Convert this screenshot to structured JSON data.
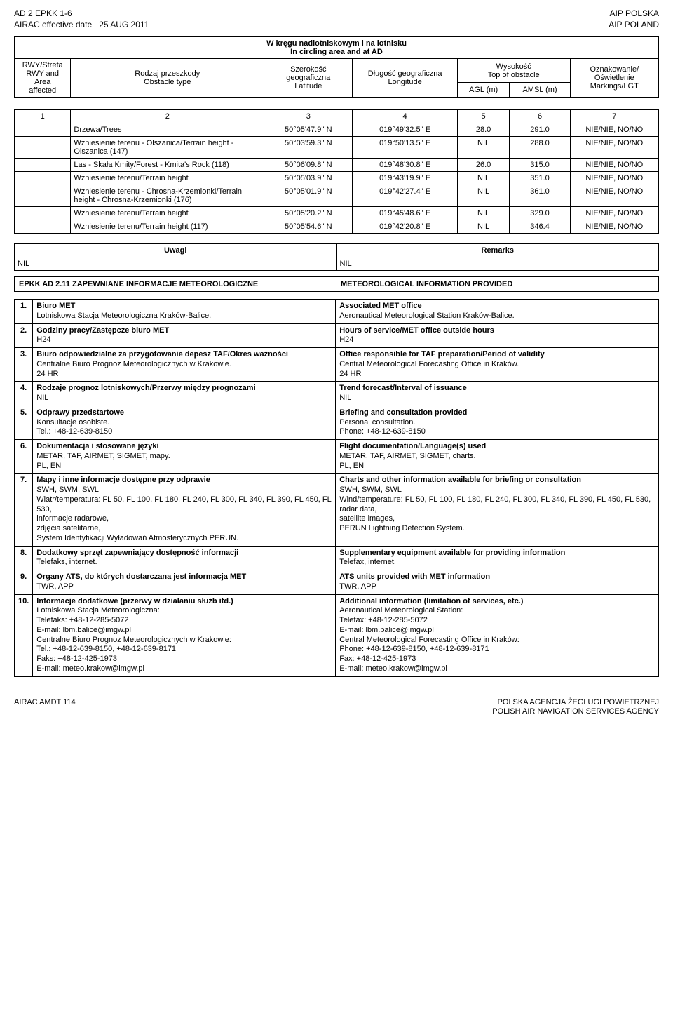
{
  "header": {
    "top_left": "AD 2 EPKK 1-6",
    "top_right": "AIP POLSKA",
    "sub_left_prefix": "AIRAC effective date",
    "sub_left_date": "25 AUG 2011",
    "sub_right": "AIP POLAND"
  },
  "obstacle_table": {
    "title_pl": "W kręgu nadlotniskowym i na lotnisku",
    "title_en": "In circling area and at AD",
    "head": {
      "c1_pl": "RWY/Strefa",
      "c1_en1": "RWY and",
      "c1_en2": "Area",
      "c1_en3": "affected",
      "c2_pl": "Rodzaj przeszkody",
      "c2_en": "Obstacle type",
      "c3_pl": "Szerokość",
      "c3_pl2": "geograficzna",
      "c3_en": "Latitude",
      "c4_pl": "Długość geograficzna",
      "c4_en": "Longitude",
      "c5_pl": "Wysokość",
      "c5_en": "Top of obstacle",
      "c5a": "AGL (m)",
      "c5b": "AMSL (m)",
      "c6_pl": "Oznakowanie/",
      "c6_pl2": "Oświetlenie",
      "c6_en": "Markings/LGT"
    },
    "numrow": [
      "1",
      "2",
      "3",
      "4",
      "5",
      "6",
      "7"
    ],
    "rows": [
      {
        "type": "Drzewa/Trees",
        "lat": "50°05'47.9'' N",
        "lon": "019°49'32.5'' E",
        "agl": "28.0",
        "amsl": "291.0",
        "mark": "NIE/NIE, NO/NO"
      },
      {
        "type": "Wzniesienie terenu - Olszanica/Terrain height - Olszanica (147)",
        "lat": "50°03'59.3'' N",
        "lon": "019°50'13.5'' E",
        "agl": "NIL",
        "amsl": "288.0",
        "mark": "NIE/NIE, NO/NO"
      },
      {
        "type": "Las - Skała Kmity/Forest - Kmita's Rock (118)",
        "lat": "50°06'09.8'' N",
        "lon": "019°48'30.8'' E",
        "agl": "26.0",
        "amsl": "315.0",
        "mark": "NIE/NIE, NO/NO"
      },
      {
        "type": "Wzniesienie terenu/Terrain height",
        "lat": "50°05'03.9'' N",
        "lon": "019°43'19.9'' E",
        "agl": "NIL",
        "amsl": "351.0",
        "mark": "NIE/NIE, NO/NO"
      },
      {
        "type": "Wzniesienie terenu - Chrosna-Krzemionki/Terrain height - Chrosna-Krzemionki (176)",
        "lat": "50°05'01.9'' N",
        "lon": "019°42'27.4'' E",
        "agl": "NIL",
        "amsl": "361.0",
        "mark": "NIE/NIE, NO/NO"
      },
      {
        "type": "Wzniesienie terenu/Terrain height",
        "lat": "50°05'20.2'' N",
        "lon": "019°45'48.6'' E",
        "agl": "NIL",
        "amsl": "329.0",
        "mark": "NIE/NIE, NO/NO"
      },
      {
        "type": "Wzniesienie terenu/Terrain height (117)",
        "lat": "50°05'54.6'' N",
        "lon": "019°42'20.8'' E",
        "agl": "NIL",
        "amsl": "346.4",
        "mark": "NIE/NIE, NO/NO"
      }
    ]
  },
  "remarks": {
    "head_pl": "Uwagi",
    "head_en": "Remarks",
    "val_pl": "NIL",
    "val_en": "NIL"
  },
  "section211": {
    "left": "EPKK AD 2.11 ZAPEWNIANE INFORMACJE METEOROLOGICZNE",
    "right": "METEOROLOGICAL INFORMATION PROVIDED"
  },
  "met": [
    {
      "n": "1.",
      "pl_label": "Biuro MET",
      "pl_body": "Lotniskowa Stacja Meteorologiczna Kraków-Balice.",
      "en_label": "Associated MET office",
      "en_body": "Aeronautical Meteorological Station Kraków-Balice."
    },
    {
      "n": "2.",
      "pl_label": "Godziny pracy/Zastępcze biuro MET",
      "pl_body": "H24",
      "en_label": "Hours of service/MET office outside hours",
      "en_body": "H24"
    },
    {
      "n": "3.",
      "pl_label": "Biuro odpowiedzialne za przygotowanie depesz TAF/Okres ważności",
      "pl_body": "Centralne Biuro Prognoz Meteorologicznych w Krakowie.\n24 HR",
      "en_label": "Office responsible for TAF preparation/Period of validity",
      "en_body": "Central Meteorological Forecasting Office in Kraków.\n24 HR"
    },
    {
      "n": "4.",
      "pl_label": "Rodzaje prognoz lotniskowych/Przerwy między prognozami",
      "pl_body": "NIL",
      "en_label": "Trend forecast/Interval of issuance",
      "en_body": "NIL"
    },
    {
      "n": "5.",
      "pl_label": "Odprawy przedstartowe",
      "pl_body": "Konsultacje osobiste.\nTel.: +48-12-639-8150",
      "en_label": "Briefing and consultation provided",
      "en_body": "Personal consultation.\nPhone: +48-12-639-8150"
    },
    {
      "n": "6.",
      "pl_label": "Dokumentacja i stosowane języki",
      "pl_body": "METAR, TAF, AIRMET, SIGMET, mapy.\nPL, EN",
      "en_label": "Flight documentation/Language(s) used",
      "en_body": "METAR, TAF, AIRMET, SIGMET, charts.\nPL, EN"
    },
    {
      "n": "7.",
      "pl_label": "Mapy i inne informacje dostępne przy odprawie",
      "pl_body": "SWH, SWM, SWL\nWiatr/temperatura: FL 50, FL 100, FL 180, FL 240, FL 300, FL 340, FL 390, FL 450, FL 530,\ninformacje radarowe,\nzdjęcia satelitarne,\nSystem Identyfikacji Wyładowań Atmosferycznych PERUN.",
      "en_label": "Charts and other information available for briefing or consultation",
      "en_body": "SWH, SWM, SWL\nWind/temperature: FL 50, FL 100, FL 180, FL 240, FL 300, FL 340, FL 390, FL 450, FL 530,\nradar data,\nsatellite images,\nPERUN Lightning Detection System."
    },
    {
      "n": "8.",
      "pl_label": "Dodatkowy sprzęt zapewniający dostępność informacji",
      "pl_body": "Telefaks, internet.",
      "en_label": "Supplementary equipment available for providing information",
      "en_body": "Telefax, internet."
    },
    {
      "n": "9.",
      "pl_label": "Organy ATS, do których dostarczana jest informacja MET",
      "pl_body": "TWR, APP",
      "en_label": "ATS units provided with MET information",
      "en_body": "TWR, APP"
    },
    {
      "n": "10.",
      "pl_label": "Informacje dodatkowe (przerwy w działaniu służb itd.)",
      "pl_body": "Lotniskowa Stacja Meteorologiczna:\nTelefaks:        +48-12-285-5072\nE-mail:           lbm.balice@imgw.pl\nCentralne Biuro Prognoz Meteorologicznych w Krakowie:\nTel.:              +48-12-639-8150, +48-12-639-8171\nFaks:             +48-12-425-1973\nE-mail:           meteo.krakow@imgw.pl",
      "en_label": "Additional information (limitation of services, etc.)",
      "en_body": "Aeronautical Meteorological Station:\nTelefax:          +48-12-285-5072\nE-mail:           lbm.balice@imgw.pl\nCentral Meteorological Forecasting Office in Kraków:\nPhone:           +48-12-639-8150, +48-12-639-8171\nFax:              +48-12-425-1973\nE-mail:           meteo.krakow@imgw.pl"
    }
  ],
  "footer": {
    "left": "AIRAC AMDT   114",
    "right1": "POLSKA AGENCJA ŻEGLUGI POWIETRZNEJ",
    "right2": "POLISH AIR NAVIGATION SERVICES AGENCY"
  }
}
